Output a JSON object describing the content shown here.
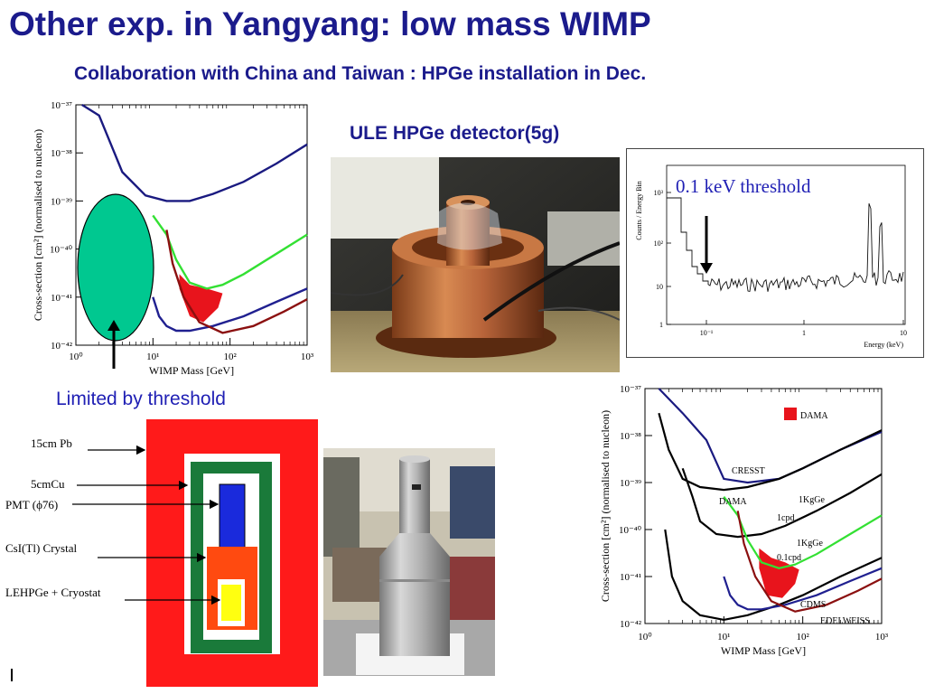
{
  "slide": {
    "title": "Other exp. in Yangyang: low mass WIMP",
    "subtitle": "Collaboration with China and Taiwan : HPGe installation in Dec.",
    "ule_label": "ULE HPGe detector(5g)",
    "limited_label": "Limited by threshold",
    "threshold_label": "0.1 keV threshold"
  },
  "colors": {
    "title": "#1b1b8c",
    "label_blue": "#1f1fb4",
    "dama_red": "#e8141c",
    "crystal_green": "#00c890",
    "shield_red": "#ff1a1a",
    "shield_green": "#1a7a3a",
    "pmt_blue": "#1a2adc",
    "crystal_orange": "#ff4a10",
    "hpge_yellow": "#ffff10"
  },
  "schematic": {
    "labels": [
      "15cm Pb",
      "5cmCu",
      "PMT (ϕ76)",
      "CsI(Tl) Crystal",
      "LEHPGe + Cryostat"
    ]
  },
  "chart_data": [
    {
      "type": "line",
      "xlabel": "WIMP Mass [GeV]",
      "ylabel": "Cross-section [cm²] (normalised to nucleon)",
      "x_scale": "log",
      "y_scale": "log",
      "xlim": [
        1,
        1000
      ],
      "ylim": [
        1e-42,
        1e-37
      ],
      "x_ticks": [
        "10⁰",
        "10¹",
        "10²",
        "10³"
      ],
      "y_ticks": [
        "10⁻³⁷",
        "10⁻³⁸",
        "10⁻³⁹",
        "10⁻⁴⁰",
        "10⁻⁴¹",
        "10⁻⁴²"
      ],
      "series": [
        {
          "color": "#1a1a80",
          "x": [
            1.2,
            2,
            4,
            8,
            15,
            30,
            60,
            150,
            400,
            1000
          ],
          "y": [
            1e-37,
            6e-38,
            4e-39,
            1.3e-39,
            1e-39,
            1e-39,
            1.4e-39,
            2.5e-39,
            6e-39,
            1.5e-38
          ]
        },
        {
          "color": "#33e033",
          "x": [
            10,
            15,
            20,
            30,
            50,
            80,
            150,
            400,
            1000
          ],
          "y": [
            5e-40,
            2e-40,
            6e-41,
            2e-41,
            1.5e-41,
            1.8e-41,
            3e-41,
            8e-41,
            2e-40
          ]
        },
        {
          "color": "#202090",
          "x": [
            10,
            12,
            15,
            20,
            30,
            60,
            150,
            400,
            1000
          ],
          "y": [
            1e-41,
            4e-42,
            2.5e-42,
            2e-42,
            2e-42,
            2.5e-42,
            4e-42,
            8e-42,
            1.5e-41
          ]
        },
        {
          "color": "#8b1010",
          "x": [
            15,
            18,
            25,
            40,
            80,
            200,
            500,
            1000
          ],
          "y": [
            2.5e-40,
            5e-41,
            1e-41,
            3e-42,
            1.8e-42,
            2.5e-42,
            5e-42,
            9e-42
          ]
        }
      ],
      "regions": [
        {
          "name": "DAMA",
          "color": "#e8141c"
        }
      ]
    },
    {
      "type": "line",
      "xlabel": "Energy (keV)",
      "ylabel": "Counts / Energy Bin",
      "x_scale": "log",
      "y_scale": "log",
      "x_ticks": [
        "10⁻¹",
        "1",
        "10"
      ],
      "y_ticks": [
        "10³",
        "10²",
        "10",
        "1"
      ],
      "annotation": "0.1 keV threshold"
    },
    {
      "type": "line",
      "xlabel": "WIMP Mass [GeV]",
      "ylabel": "Cross-section [cm²] (normalised to nucleon)",
      "x_scale": "log",
      "y_scale": "log",
      "xlim": [
        1,
        1000
      ],
      "ylim": [
        1e-42,
        1e-37
      ],
      "x_ticks": [
        "10⁰",
        "10¹",
        "10²",
        "10³"
      ],
      "y_ticks": [
        "10⁻³⁷",
        "10⁻³⁸",
        "10⁻³⁹",
        "10⁻⁴⁰",
        "10⁻⁴¹",
        "10⁻⁴²"
      ],
      "legend": "DAMA",
      "annotations": [
        "DAMA",
        "CRESST",
        "DAMA",
        "1KgGe",
        "1cpd",
        "1KgGe",
        "0.1cpd",
        "CDMS",
        "EDELWEISS"
      ],
      "series": [
        {
          "name": "CRESST",
          "color": "#1a1a80",
          "x": [
            1.5,
            3,
            6,
            10,
            20,
            50,
            100,
            300,
            1000
          ],
          "y": [
            1e-37,
            3e-38,
            8e-39,
            1.2e-39,
            1e-39,
            1.2e-39,
            2e-39,
            5e-39,
            1.2e-38
          ]
        },
        {
          "name": "1KgGe 1cpd",
          "color": "#000000",
          "x": [
            1.5,
            2,
            3,
            5,
            10,
            20,
            50,
            100,
            300,
            1000
          ],
          "y": [
            3e-38,
            5e-39,
            1.2e-39,
            8e-40,
            7e-40,
            8e-40,
            1.2e-39,
            2e-39,
            5e-39,
            1.3e-38
          ]
        },
        {
          "name": "1KgGe 0.1cpd",
          "color": "#000000",
          "x": [
            3,
            4,
            5,
            8,
            15,
            30,
            60,
            150,
            400,
            1000
          ],
          "y": [
            2e-39,
            5e-40,
            1.5e-40,
            8e-41,
            7e-41,
            8e-41,
            1.2e-40,
            2.5e-40,
            6e-40,
            1.5e-39
          ]
        },
        {
          "name": "",
          "color": "#000000",
          "x": [
            1.8,
            2.2,
            3,
            5,
            10,
            20,
            50,
            100,
            300,
            1000
          ],
          "y": [
            1e-40,
            1e-41,
            3e-42,
            1.5e-42,
            1.2e-42,
            1.5e-42,
            2.5e-42,
            4e-42,
            1e-41,
            2.5e-41
          ]
        },
        {
          "name": "",
          "color": "#33e033",
          "x": [
            10,
            15,
            20,
            30,
            50,
            80,
            150,
            400,
            1000
          ],
          "y": [
            5e-40,
            2e-40,
            6e-41,
            2e-41,
            1.5e-41,
            1.8e-41,
            3e-41,
            8e-41,
            2e-40
          ]
        },
        {
          "name": "CDMS",
          "color": "#202090",
          "x": [
            10,
            12,
            15,
            20,
            30,
            60,
            150,
            400,
            1000
          ],
          "y": [
            1e-41,
            4e-42,
            2.5e-42,
            2e-42,
            2e-42,
            2.5e-42,
            4e-42,
            8e-42,
            1.5e-41
          ]
        },
        {
          "name": "EDELWEISS",
          "color": "#8b1010",
          "x": [
            15,
            18,
            25,
            40,
            80,
            200,
            500,
            1000
          ],
          "y": [
            2.5e-40,
            5e-41,
            1e-41,
            3e-42,
            1.8e-42,
            2.5e-42,
            5e-42,
            9e-42
          ]
        }
      ],
      "regions": [
        {
          "name": "DAMA",
          "color": "#e8141c"
        }
      ]
    }
  ]
}
